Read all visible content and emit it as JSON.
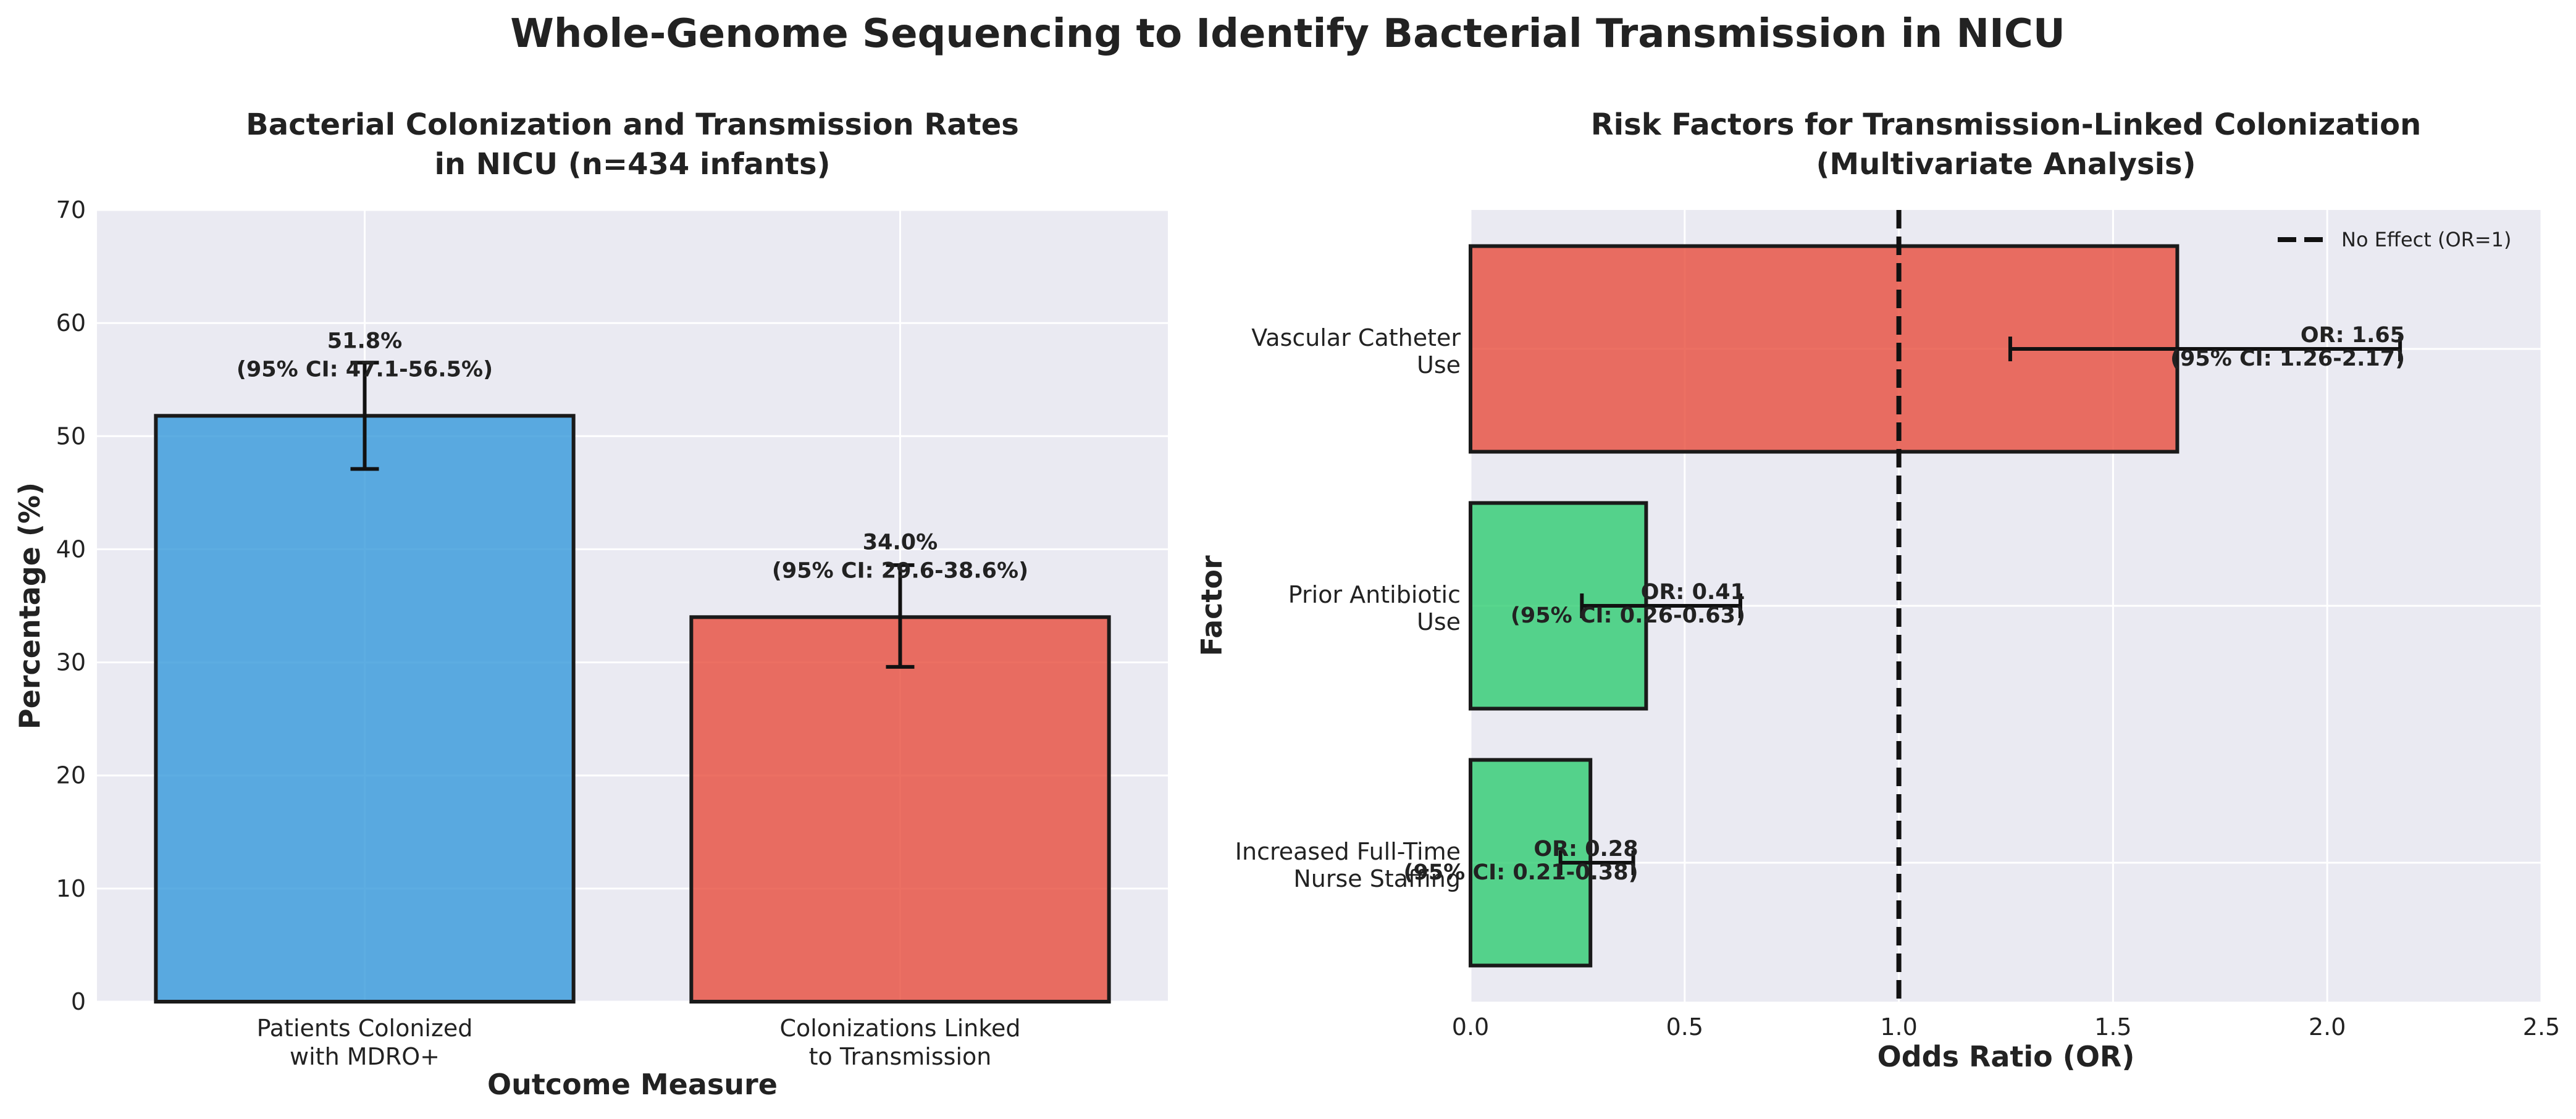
{
  "figure": {
    "suptitle": "Whole-Genome Sequencing to Identify Bacterial Transmission in NICU"
  },
  "chart_data": [
    {
      "type": "bar",
      "title": "Bacterial Colonization and Transmission Rates\nin NICU (n=434 infants)",
      "xlabel": "Outcome Measure",
      "ylabel": "Percentage (%)",
      "ylim": [
        0,
        70
      ],
      "yticks": [
        0,
        10,
        20,
        30,
        40,
        50,
        60,
        70
      ],
      "grid": true,
      "categories": [
        "Patients Colonized\nwith MDRO+",
        "Colonizations Linked\nto Transmission"
      ],
      "values": [
        51.8,
        34.0
      ],
      "ci_low": [
        47.1,
        29.6
      ],
      "ci_high": [
        56.5,
        38.6
      ],
      "colors": [
        "#3498db",
        "#e74c3c"
      ],
      "labels": [
        "51.8%\n(95% CI: 47.1-56.5%)",
        "34.0%\n(95% CI: 29.6-38.6%)"
      ]
    },
    {
      "type": "bar",
      "orientation": "horizontal",
      "title": "Risk Factors for Transmission-Linked Colonization\n(Multivariate Analysis)",
      "xlabel": "Odds Ratio (OR)",
      "ylabel": "Factor",
      "xlim": [
        0,
        2.5
      ],
      "xticks": [
        0.0,
        0.5,
        1.0,
        1.5,
        2.0,
        2.5
      ],
      "grid": true,
      "categories": [
        "Vascular Catheter\nUse",
        "Prior Antibiotic\nUse",
        "Increased Full-Time\nNurse Staffing"
      ],
      "values": [
        1.65,
        0.41,
        0.28
      ],
      "ci_low": [
        1.26,
        0.26,
        0.21
      ],
      "ci_high": [
        2.17,
        0.63,
        0.38
      ],
      "colors": [
        "#e74c3c",
        "#2ecc71",
        "#2ecc71"
      ],
      "labels": [
        "OR: 1.65\n(95% CI: 1.26-2.17)",
        "OR: 0.41\n(95% CI: 0.26-0.63)",
        "OR: 0.28\n(95% CI: 0.21-0.38)"
      ],
      "reference_line": {
        "x": 1.0,
        "label": "No Effect (OR=1)"
      },
      "legend": "top-right"
    }
  ]
}
